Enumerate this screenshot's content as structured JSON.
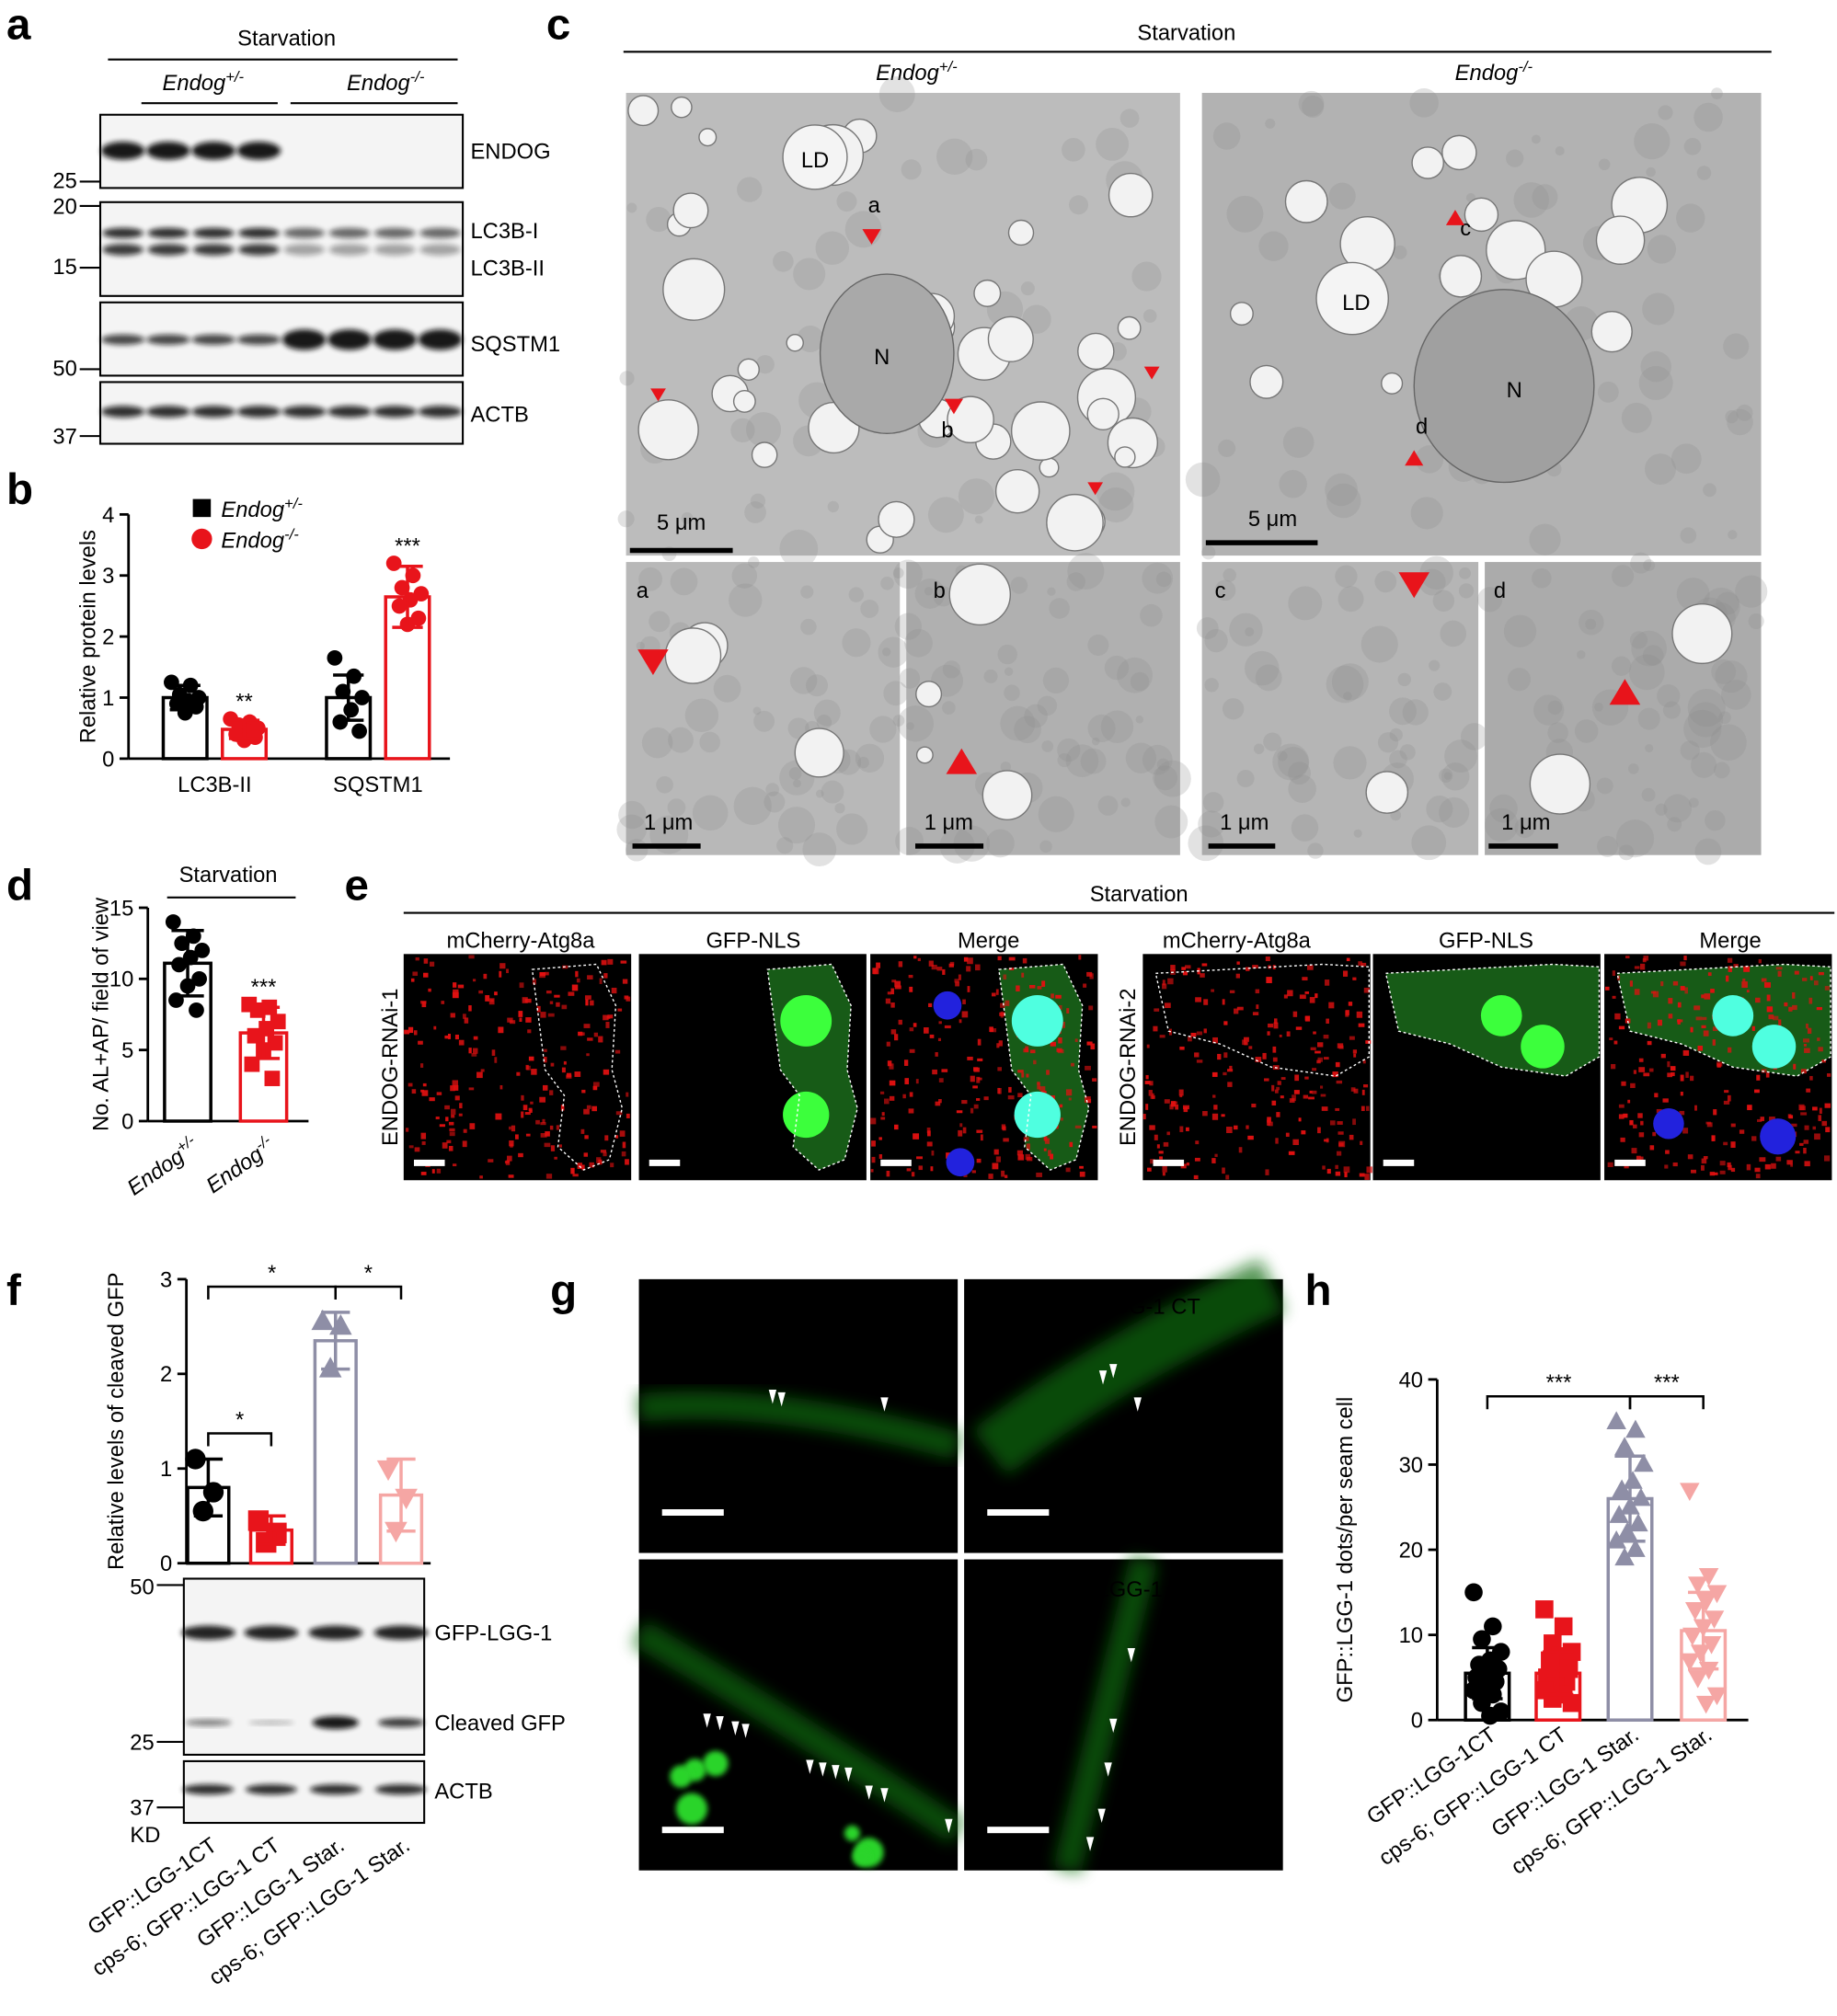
{
  "panel_letters": [
    "a",
    "b",
    "c",
    "d",
    "e",
    "f",
    "g",
    "h"
  ],
  "panel_a": {
    "condition": "Starvation",
    "genotypes": [
      {
        "gene": "Endog",
        "sup": "+/-"
      },
      {
        "gene": "Endog",
        "sup": "-/-"
      }
    ],
    "unit": "KD",
    "markers": [
      "25",
      "20",
      "15",
      "50",
      "37"
    ],
    "bands": [
      "ENDOG",
      "LC3B-I",
      "LC3B-II",
      "SQSTM1",
      "ACTB"
    ]
  },
  "panel_c": {
    "condition": "Starvation",
    "genotypes": [
      {
        "gene": "Endog",
        "sup": "+/-"
      },
      {
        "gene": "Endog",
        "sup": "-/-"
      }
    ],
    "labels": [
      "LD",
      "N",
      "LD",
      "N"
    ],
    "arrows": [
      "a",
      "b",
      "c",
      "d"
    ],
    "insets": [
      "a",
      "b",
      "c",
      "d"
    ],
    "scale_bars": [
      "5 μm",
      "5 μm",
      "1 μm",
      "1 μm",
      "1 μm",
      "1 μm"
    ]
  },
  "panel_e": {
    "condition": "Starvation",
    "channels": [
      "mCherry-Atg8a",
      "GFP-NLS",
      "Merge",
      "mCherry-Atg8a",
      "GFP-NLS",
      "Merge"
    ],
    "rows": [
      "ENDOG-RNAi-1",
      "ENDOG-RNAi-2"
    ]
  },
  "panel_f_blot": {
    "markers": [
      "50",
      "25",
      "37"
    ],
    "unit": "KD",
    "bands": [
      "GFP-LGG-1",
      "Cleaved GFP",
      "ACTB"
    ]
  },
  "panel_g": {
    "images": [
      "GFP::LGG-1 CT",
      "cps-6; GFP::LGG-1 CT",
      "GFP::LGG-1 Star.",
      "cps-6; GFP::LGG-1 Star."
    ]
  },
  "chart_data": [
    {
      "type": "bar",
      "y_label": "Relative protein levels",
      "categories": [
        "LC3B-II",
        "SQSTM1"
      ],
      "series": [
        {
          "name": "Endog",
          "name_sup": "+/-",
          "color": "#000000",
          "values": [
            1.0,
            1.0
          ],
          "errors": [
            0.2,
            0.37
          ],
          "points": [
            [
              1.25,
              1.2,
              1.05,
              1.0,
              0.95,
              0.9,
              0.85,
              0.75
            ],
            [
              1.65,
              1.35,
              1.1,
              1.0,
              0.8,
              0.6,
              0.45
            ]
          ]
        },
        {
          "name": "Endog",
          "name_sup": "-/-",
          "color": "#e8141b",
          "values": [
            0.48,
            2.65
          ],
          "errors": [
            0.15,
            0.5
          ],
          "points": [
            [
              0.65,
              0.6,
              0.55,
              0.5,
              0.45,
              0.4,
              0.35,
              0.3
            ],
            [
              3.2,
              3.0,
              2.8,
              2.7,
              2.6,
              2.5,
              2.3,
              2.2
            ]
          ],
          "significance": [
            "**",
            "***"
          ]
        }
      ],
      "ylim": [
        0,
        4
      ],
      "yticks": [
        0,
        1,
        2,
        3,
        4
      ]
    },
    {
      "type": "bar",
      "title": "Starvation",
      "y_label": "No. AL+AP/ field of view",
      "categories": [
        "Endog",
        "Endog"
      ],
      "category_sups": [
        "+/-",
        "-/-"
      ],
      "colors": [
        "#000000",
        "#e8141b"
      ],
      "markers": [
        "circle",
        "square"
      ],
      "values": [
        11.1,
        6.2
      ],
      "errors": [
        2.3,
        1.8
      ],
      "points": [
        [
          14,
          13,
          12.5,
          12,
          11.5,
          11,
          10,
          9.5,
          8.5,
          7.8
        ],
        [
          8.2,
          8,
          7.8,
          7,
          6.5,
          6,
          5.5,
          5,
          4,
          3
        ]
      ],
      "significance": [
        null,
        "***"
      ],
      "ylim": [
        0,
        15
      ],
      "yticks": [
        0,
        5,
        10,
        15
      ]
    },
    {
      "type": "bar",
      "y_label": "Relative levels of cleaved GFP",
      "categories": [
        "GFP::LGG-1CT",
        "cps-6; GFP::LGG-1 CT",
        "GFP::LGG-1 Star.",
        "cps-6; GFP::LGG-1 Star."
      ],
      "colors": [
        "#000000",
        "#e8141b",
        "#8e8ea6",
        "#f5a6a4"
      ],
      "markers": [
        "circle",
        "square",
        "triangle",
        "triangle-down"
      ],
      "values": [
        0.8,
        0.35,
        2.35,
        0.72
      ],
      "errors": [
        0.3,
        0.15,
        0.3,
        0.38
      ],
      "points": [
        [
          1.1,
          0.75,
          0.55
        ],
        [
          0.45,
          0.32,
          0.22
        ],
        [
          2.55,
          2.5,
          2.05
        ],
        [
          1.0,
          0.7,
          0.35
        ]
      ],
      "comparisons": [
        {
          "groups": [
            0,
            2
          ],
          "label": "*"
        },
        {
          "groups": [
            2,
            3
          ],
          "label": "*"
        },
        {
          "groups": [
            0,
            1
          ],
          "label": "*"
        }
      ],
      "ylim": [
        0,
        3
      ],
      "yticks": [
        0,
        1,
        2,
        3
      ]
    },
    {
      "type": "bar",
      "y_label": "GFP::LGG-1 dots/per seam cell",
      "categories": [
        "GFP::LGG-1CT",
        "cps-6; GFP::LGG-1 CT",
        "GFP::LGG-1 Star.",
        "cps-6; GFP::LGG-1 Star."
      ],
      "colors": [
        "#000000",
        "#e8141b",
        "#8e8ea6",
        "#f5a6a4"
      ],
      "markers": [
        "circle",
        "square",
        "triangle",
        "triangle-down"
      ],
      "values": [
        5.5,
        5.5,
        26,
        10.5
      ],
      "errors": [
        3,
        2.5,
        5,
        4.5
      ],
      "points": [
        [
          15,
          11,
          9.5,
          8,
          7,
          6.5,
          6,
          5.5,
          5,
          4.5,
          4,
          3.5,
          3,
          2,
          1,
          0.5
        ],
        [
          13,
          11,
          9,
          8,
          7.5,
          7,
          6,
          5.5,
          5,
          4.5,
          4,
          3.5,
          3,
          2.5,
          2
        ],
        [
          35,
          34,
          32,
          30,
          28,
          27,
          26,
          25,
          24,
          23,
          22,
          21,
          20,
          19
        ],
        [
          27,
          17,
          16,
          15,
          14,
          13,
          12,
          11,
          10,
          9,
          8,
          7,
          6,
          5,
          3,
          2
        ]
      ],
      "comparisons": [
        {
          "groups": [
            0,
            2
          ],
          "label": "***"
        },
        {
          "groups": [
            2,
            3
          ],
          "label": "***"
        }
      ],
      "ylim": [
        0,
        40
      ],
      "yticks": [
        0,
        10,
        20,
        30,
        40
      ]
    }
  ]
}
